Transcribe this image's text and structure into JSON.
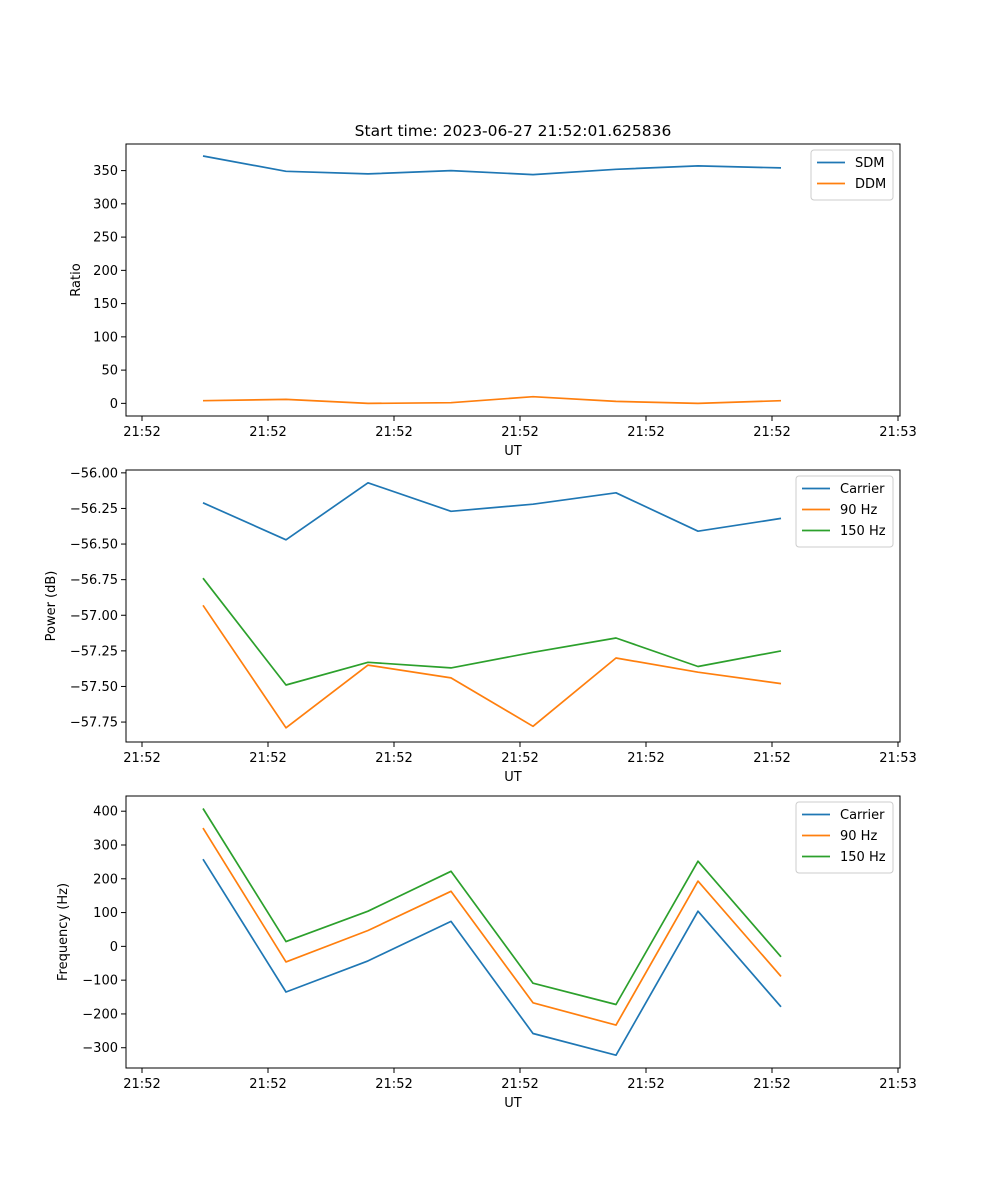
{
  "chart_data": [
    {
      "type": "line",
      "title": "Start time: 2023-06-27 21:52:01.625836",
      "xlabel": "UT",
      "ylabel": "Ratio",
      "x_tick_labels": [
        "21:52",
        "21:52",
        "21:52",
        "21:52",
        "21:52",
        "21:52",
        "21:52",
        "21:53"
      ],
      "y_ticks": [
        "0",
        "50",
        "100",
        "150",
        "200",
        "250",
        "300",
        "350"
      ],
      "ylim": [
        -19,
        390
      ],
      "legend": "top-right",
      "series": [
        {
          "name": "SDM",
          "color": "#1f77b4",
          "values": [
            372,
            349,
            345,
            350,
            344,
            352,
            357,
            354
          ]
        },
        {
          "name": "DDM",
          "color": "#ff7f0e",
          "values": [
            4,
            6,
            0,
            1,
            10,
            3,
            0,
            4
          ]
        }
      ]
    },
    {
      "type": "line",
      "title": "",
      "xlabel": "UT",
      "ylabel": "Power (dB)",
      "x_tick_labels": [
        "21:52",
        "21:52",
        "21:52",
        "21:52",
        "21:52",
        "21:52",
        "21:52",
        "21:53"
      ],
      "y_ticks": [
        "−57.75",
        "−57.50",
        "−57.25",
        "−57.00",
        "−56.75",
        "−56.50",
        "−56.25",
        "−56.00"
      ],
      "ylim": [
        -57.89,
        -55.98
      ],
      "legend": "top-right",
      "series": [
        {
          "name": "Carrier",
          "color": "#1f77b4",
          "values": [
            -56.21,
            -56.47,
            -56.07,
            -56.27,
            -56.22,
            -56.14,
            -56.41,
            -56.32
          ]
        },
        {
          "name": "90 Hz",
          "color": "#ff7f0e",
          "values": [
            -56.93,
            -57.79,
            -57.35,
            -57.44,
            -57.78,
            -57.3,
            -57.4,
            -57.48
          ]
        },
        {
          "name": "150 Hz",
          "color": "#2ca02c",
          "values": [
            -56.74,
            -57.49,
            -57.33,
            -57.37,
            -57.26,
            -57.16,
            -57.36,
            -57.25
          ]
        }
      ]
    },
    {
      "type": "line",
      "title": "",
      "xlabel": "UT",
      "ylabel": "Frequency (Hz)",
      "x_tick_labels": [
        "21:52",
        "21:52",
        "21:52",
        "21:52",
        "21:52",
        "21:52",
        "21:52",
        "21:53"
      ],
      "y_ticks": [
        "−300",
        "−200",
        "−100",
        "0",
        "100",
        "200",
        "300",
        "400"
      ],
      "ylim": [
        -360,
        445
      ],
      "legend": "top-right",
      "series": [
        {
          "name": "Carrier",
          "color": "#1f77b4",
          "values": [
            258,
            -135,
            -43,
            74,
            -258,
            -322,
            104,
            -179
          ]
        },
        {
          "name": "90 Hz",
          "color": "#ff7f0e",
          "values": [
            350,
            -46,
            47,
            163,
            -167,
            -233,
            193,
            -89
          ]
        },
        {
          "name": "150 Hz",
          "color": "#2ca02c",
          "values": [
            408,
            14,
            104,
            222,
            -109,
            -172,
            252,
            -31
          ]
        }
      ]
    }
  ]
}
